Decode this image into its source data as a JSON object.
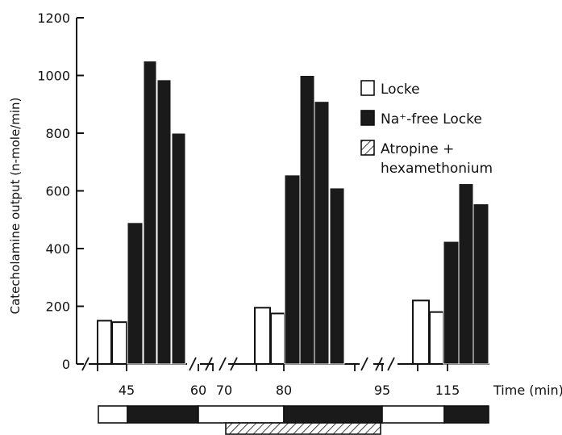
{
  "colors": {
    "ink": "#111111",
    "paper": "#ffffff",
    "na_free_fill": "#1a1a1a",
    "locke_fill": "#ffffff"
  },
  "chart_data": {
    "type": "bar",
    "ylabel": "Catecholamine output (n-mole/min)",
    "xlabel": "Time (min)",
    "ylim": [
      0,
      1200
    ],
    "yticks": [
      0,
      200,
      400,
      600,
      800,
      1000,
      1200
    ],
    "grid": false,
    "legend_position": "right",
    "legend": [
      {
        "label": "Locke",
        "style": "open"
      },
      {
        "label": "Na⁺-free Locke",
        "style": "filled"
      },
      {
        "label": "Atropine +",
        "label2": "hexamethonium",
        "style": "hatched"
      }
    ],
    "x_tick_labels": [
      "45",
      "60",
      "70",
      "80",
      "95",
      "115"
    ],
    "series": [
      {
        "name": "Locke",
        "style": "open",
        "values": [
          150,
          145,
          195,
          175,
          220,
          180
        ]
      },
      {
        "name": "Na⁺-free Locke",
        "style": "filled",
        "values": [
          490,
          1050,
          985,
          800,
          655,
          1000,
          910,
          610,
          425,
          625,
          555
        ]
      }
    ],
    "perfusion_bar": {
      "segments": [
        "Locke",
        "Na⁺-free Locke",
        "Locke",
        "Na⁺-free Locke",
        "Locke",
        "Na⁺-free Locke"
      ],
      "drug": "Atropine + hexamethonium"
    }
  }
}
